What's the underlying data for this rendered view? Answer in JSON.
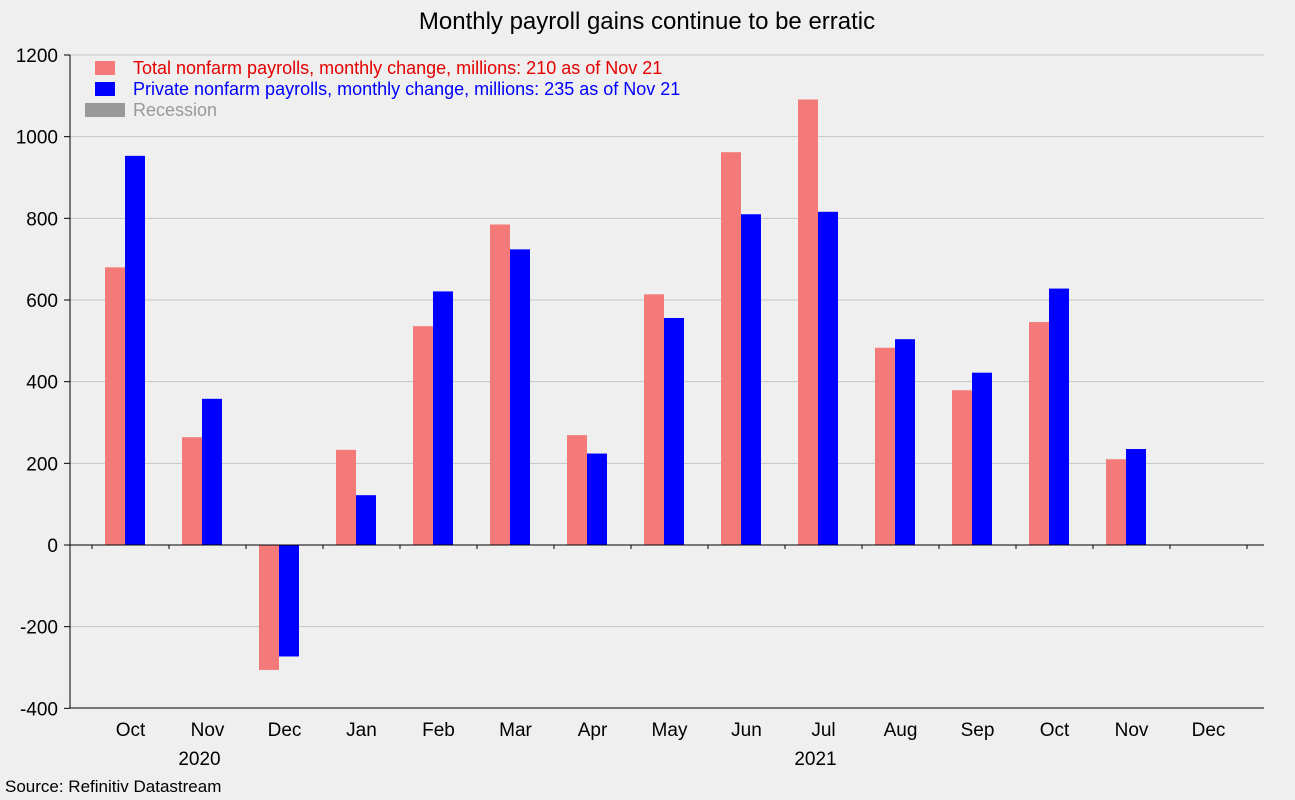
{
  "chart_data": {
    "type": "bar",
    "title": "Monthly payroll gains continue to be erratic",
    "source": "Source: Refinitiv Datastream",
    "categories": [
      "Oct",
      "Nov",
      "Dec",
      "Jan",
      "Feb",
      "Mar",
      "Apr",
      "May",
      "Jun",
      "Jul",
      "Aug",
      "Sep",
      "Oct",
      "Nov",
      "Dec"
    ],
    "year_labels": [
      {
        "text": "2020",
        "category_index": 1
      },
      {
        "text": "2021",
        "category_index": 9
      }
    ],
    "series": [
      {
        "name": "Total nonfarm payrolls, monthly change, millions: 210 as of Nov 21",
        "color": "#f47a7a",
        "values": [
          680,
          264,
          -306,
          233,
          536,
          785,
          269,
          614,
          962,
          1091,
          483,
          379,
          546,
          210,
          null
        ]
      },
      {
        "name": "Private nonfarm payrolls, monthly change, millions: 235 as of Nov 21",
        "color": "#0000ff",
        "values": [
          953,
          358,
          -273,
          122,
          621,
          724,
          224,
          556,
          810,
          816,
          504,
          422,
          628,
          235,
          null
        ]
      }
    ],
    "recession_label": "Recession",
    "recession_color": "#999999",
    "legend_text_colors": [
      "#e60000",
      "#0000ff",
      "#999999"
    ],
    "ylim": [
      -400,
      1200
    ],
    "yticks": [
      -400,
      -200,
      0,
      200,
      400,
      600,
      800,
      1000,
      1200
    ],
    "ytick_labels": [
      "-400",
      "-200",
      "0",
      "200",
      "400",
      "600",
      "800",
      "1000",
      "1200"
    ],
    "grid": true,
    "legend_position": "top-left",
    "xlabel": "",
    "ylabel": ""
  }
}
